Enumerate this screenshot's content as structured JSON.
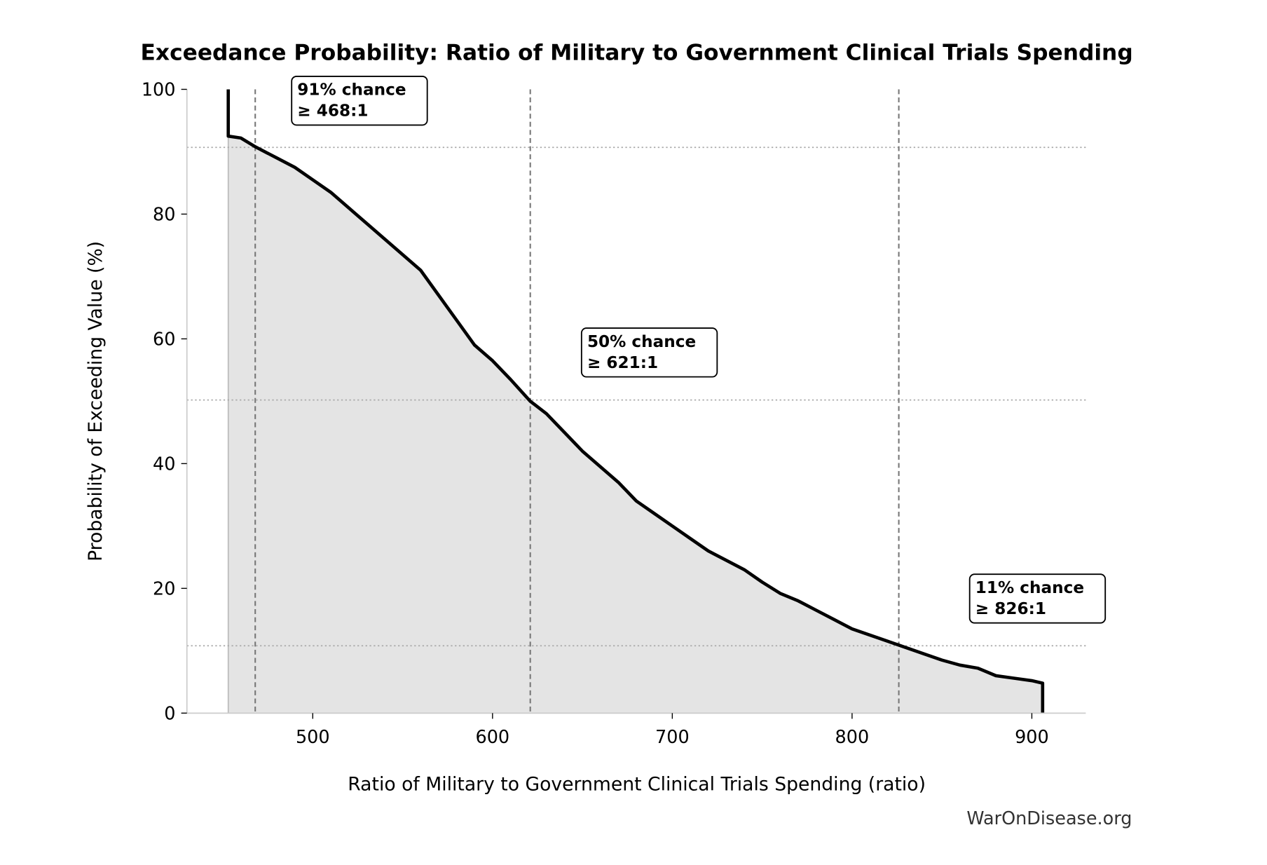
{
  "chart_data": {
    "type": "area",
    "title": "Exceedance Probability: Ratio of Military to Government Clinical Trials Spending",
    "xlabel": "Ratio of Military to Government Clinical Trials Spending (ratio)",
    "ylabel": "Probability of Exceeding Value (%)",
    "xlim": [
      430,
      930
    ],
    "ylim": [
      0,
      100
    ],
    "xticks": [
      "500",
      "600",
      "700",
      "800",
      "900"
    ],
    "yticks": [
      "0",
      "20",
      "40",
      "60",
      "80",
      "100"
    ],
    "grid": false,
    "line_color": "#000000",
    "fill_color": "#e4e4e4",
    "series": [
      {
        "x": [
          453,
          453,
          460,
          468,
          480,
          490,
          500,
          510,
          520,
          530,
          540,
          550,
          560,
          570,
          580,
          590,
          600,
          610,
          621,
          630,
          640,
          650,
          660,
          670,
          680,
          690,
          700,
          710,
          720,
          730,
          740,
          750,
          760,
          770,
          780,
          790,
          800,
          810,
          820,
          826,
          840,
          850,
          860,
          870,
          880,
          890,
          900,
          906,
          906
        ],
        "y": [
          100,
          92.5,
          92.2,
          90.8,
          89,
          87.5,
          85.5,
          83.5,
          81,
          78.5,
          76,
          73.5,
          71,
          67,
          63,
          59,
          56.5,
          53.5,
          50,
          48,
          45,
          42,
          39.5,
          37,
          34,
          32,
          30,
          28,
          26,
          24.5,
          23,
          21,
          19.2,
          18,
          16.5,
          15,
          13.5,
          12.5,
          11.5,
          10.9,
          9.5,
          8.5,
          7.7,
          7.2,
          6.0,
          5.6,
          5.2,
          4.8,
          0
        ]
      }
    ],
    "annotations": [
      {
        "x": 468,
        "y": 90.7,
        "line1": "91% chance",
        "line2": "≥ 468:1"
      },
      {
        "x": 621,
        "y": 50.2,
        "line1": "50% chance",
        "line2": "≥ 621:1"
      },
      {
        "x": 826,
        "y": 10.8,
        "line1": "11% chance",
        "line2": "≥ 826:1"
      }
    ]
  },
  "watermark": "WarOnDisease.org"
}
